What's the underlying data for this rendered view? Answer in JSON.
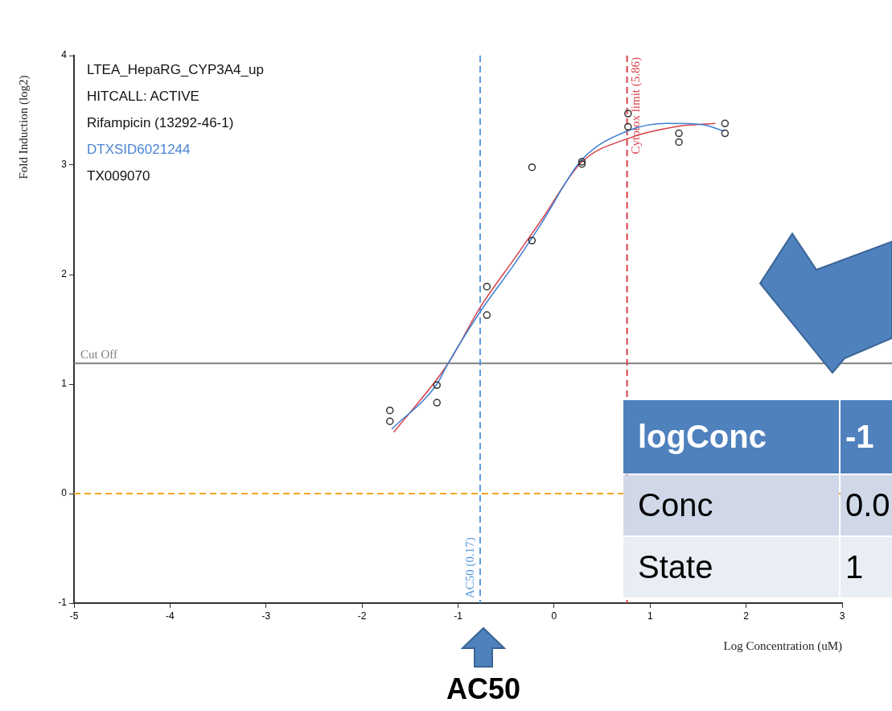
{
  "chart_data": {
    "type": "scatter",
    "xlabel": "Log Concentration (uM)",
    "ylabel": "Fold Induction (log2)",
    "xlim": [
      -5,
      3
    ],
    "xticks": [
      -5,
      -4,
      -3,
      -2,
      -1,
      0,
      1,
      2,
      3
    ],
    "ylim": [
      -1,
      4
    ],
    "yticks": [
      -1,
      0,
      1,
      2,
      3,
      4
    ],
    "grid": false,
    "legend": false,
    "series": [
      {
        "marker": "circle",
        "color": "#333333",
        "x": [
          -1.71,
          -1.71,
          -1.22,
          -1.22,
          -0.7,
          -0.7,
          -0.23,
          -0.23,
          0.29,
          0.29,
          0.77,
          0.77,
          1.3,
          1.3,
          1.78,
          1.78
        ],
        "values": [
          0.76,
          0.66,
          0.99,
          0.83,
          1.89,
          1.63,
          2.98,
          2.31,
          3.03,
          3.01,
          3.47,
          3.35,
          3.29,
          3.21,
          3.38,
          3.29
        ]
      },
      {
        "type": "line",
        "marker": "none",
        "color": "#3b7fd4",
        "x": [
          -1.69,
          -1.22,
          -1.11,
          -0.77,
          -0.41,
          -0.13,
          0.28,
          0.76,
          1.18,
          1.54,
          1.77
        ],
        "values": [
          0.59,
          1.0,
          1.18,
          1.66,
          2.1,
          2.47,
          3.04,
          3.31,
          3.38,
          3.37,
          3.31
        ]
      },
      {
        "type": "line",
        "marker": "none",
        "color": "#d9404a",
        "x": [
          -1.67,
          -1.11,
          -0.77,
          -0.41,
          -0.13,
          0.28,
          0.76,
          1.26,
          1.68
        ],
        "values": [
          0.56,
          1.18,
          1.7,
          2.15,
          2.5,
          3.02,
          3.24,
          3.35,
          3.38
        ]
      }
    ],
    "ref_lines": [
      {
        "axis": "y",
        "value": 1.19,
        "label": "Cut Off",
        "color": "#808080",
        "line_style": "solid"
      },
      {
        "axis": "y",
        "value": 0,
        "color": "#f5a623",
        "line_style": "dashed"
      },
      {
        "axis": "x",
        "value": -0.77,
        "label": "AC50 (0.17)",
        "color": "#5b9be0",
        "line_style": "dashed"
      },
      {
        "axis": "x",
        "value": 0.76,
        "label": "Cytotox limit (5.86)",
        "color": "#d9404a",
        "line_style": "dashed"
      }
    ],
    "annotations": [
      "LTEA_HepaRG_CYP3A4_up",
      "HITCALL: ACTIVE",
      "Rifampicin (13292-46-1)",
      "DTXSID6021244",
      "TX009070",
      "AC50",
      "logConc",
      "-1",
      "Conc",
      "0.0",
      "State",
      "1"
    ]
  }
}
